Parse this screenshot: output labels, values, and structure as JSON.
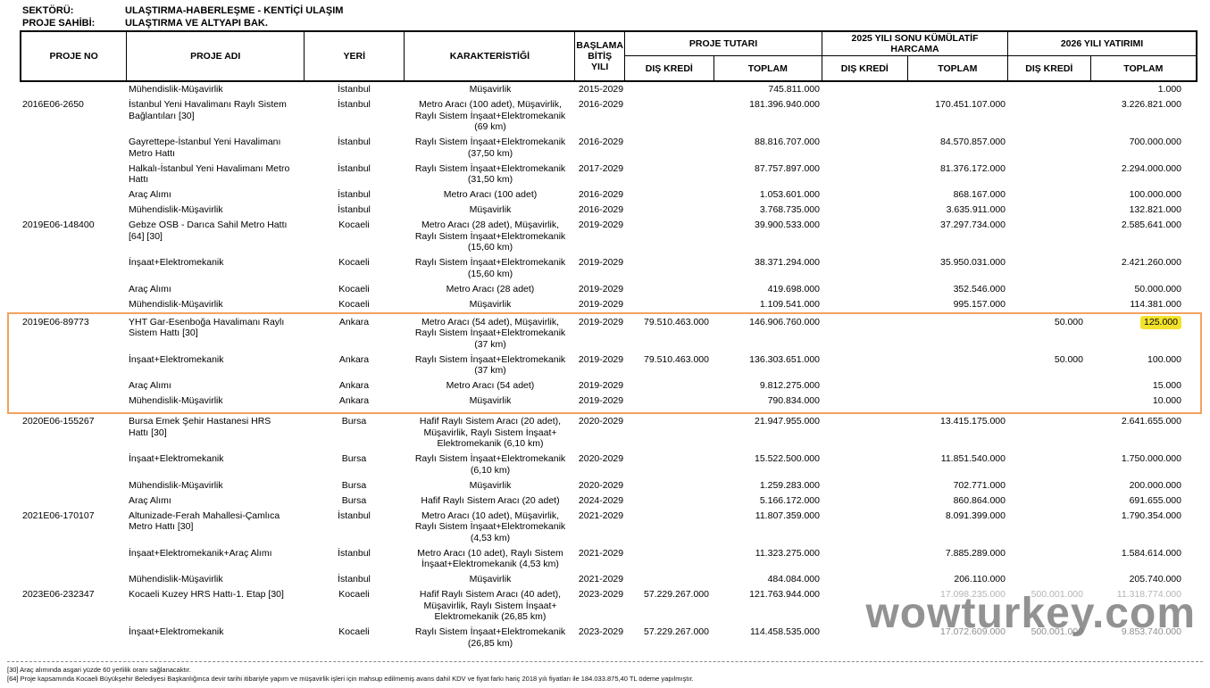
{
  "meta": {
    "sektor_label": "SEKTÖRÜ:",
    "sektor_value": "ULAŞTIRMA-HABERLEŞME - KENTİÇİ ULAŞIM",
    "sahibi_label": "PROJE SAHİBİ:",
    "sahibi_value": "ULAŞTIRMA VE ALTYAPI BAK."
  },
  "table": {
    "headers": {
      "proje_no": "PROJE NO",
      "proje_adi": "PROJE ADI",
      "yeri": "YERİ",
      "karakteristik": "KARAKTERİSTİĞİ",
      "yil": "BAŞLAMA\nBİTİŞ\nYILI",
      "proje_tutari": "PROJE TUTARI",
      "harcama": "2025 YILI SONU KÜMÜLATİF\nHARCAMA",
      "yatirim": "2026 YILI YATIRIMI",
      "dis_kredi_1": "DIŞ KREDİ",
      "toplam_1": "TOPLAM",
      "dis_kredi_2": "DIŞ KREDİ",
      "toplam_2": "TOPLAM",
      "dis_kredi_3": "DIŞ KREDİ",
      "toplam_3": "TOPLAM"
    },
    "rows": [
      {
        "section": "pre",
        "no": "",
        "adi": "Mühendislik-Müşavirlik",
        "yeri": "İstanbul",
        "kar": "Müşavirlik",
        "yil": "2015-2029",
        "pt_dis": "",
        "pt_top": "745.811.000",
        "h_dis": "",
        "h_top": "",
        "y_dis": "",
        "y_top": "1.000"
      },
      {
        "section": "pre",
        "no": "2016E06-2650",
        "adi": "İstanbul Yeni Havalimanı Raylı Sistem\nBağlantıları [30]",
        "yeri": "İstanbul",
        "kar": "Metro Aracı (100 adet), Müşavirlik,\nRaylı Sistem İnşaat+Elektromekanik\n(69 km)",
        "yil": "2016-2029",
        "pt_dis": "",
        "pt_top": "181.396.940.000",
        "h_dis": "",
        "h_top": "170.451.107.000",
        "y_dis": "",
        "y_top": "3.226.821.000"
      },
      {
        "section": "pre",
        "no": "",
        "adi": "Gayrettepe-İstanbul Yeni Havalimanı\nMetro Hattı",
        "yeri": "İstanbul",
        "kar": "Raylı Sistem İnşaat+Elektromekanik\n(37,50 km)",
        "yil": "2016-2029",
        "pt_dis": "",
        "pt_top": "88.816.707.000",
        "h_dis": "",
        "h_top": "84.570.857.000",
        "y_dis": "",
        "y_top": "700.000.000"
      },
      {
        "section": "pre",
        "no": "",
        "adi": "Halkalı-İstanbul Yeni Havalimanı Metro\nHattı",
        "yeri": "İstanbul",
        "kar": "Raylı Sistem İnşaat+Elektromekanik\n(31,50 km)",
        "yil": "2017-2029",
        "pt_dis": "",
        "pt_top": "87.757.897.000",
        "h_dis": "",
        "h_top": "81.376.172.000",
        "y_dis": "",
        "y_top": "2.294.000.000"
      },
      {
        "section": "pre",
        "no": "",
        "adi": "Araç Alımı",
        "yeri": "İstanbul",
        "kar": "Metro Aracı (100 adet)",
        "yil": "2016-2029",
        "pt_dis": "",
        "pt_top": "1.053.601.000",
        "h_dis": "",
        "h_top": "868.167.000",
        "y_dis": "",
        "y_top": "100.000.000"
      },
      {
        "section": "pre",
        "no": "",
        "adi": "Mühendislik-Müşavirlik",
        "yeri": "İstanbul",
        "kar": "Müşavirlik",
        "yil": "2016-2029",
        "pt_dis": "",
        "pt_top": "3.768.735.000",
        "h_dis": "",
        "h_top": "3.635.911.000",
        "y_dis": "",
        "y_top": "132.821.000"
      },
      {
        "section": "pre",
        "no": "2019E06-148400",
        "adi": "Gebze OSB - Darıca Sahil Metro Hattı\n[64] [30]",
        "yeri": "Kocaeli",
        "kar": "Metro Aracı (28 adet), Müşavirlik,\nRaylı Sistem İnşaat+Elektromekanik\n(15,60 km)",
        "yil": "2019-2029",
        "pt_dis": "",
        "pt_top": "39.900.533.000",
        "h_dis": "",
        "h_top": "37.297.734.000",
        "y_dis": "",
        "y_top": "2.585.641.000"
      },
      {
        "section": "pre",
        "no": "",
        "adi": "İnşaat+Elektromekanik",
        "yeri": "Kocaeli",
        "kar": "Raylı Sistem İnşaat+Elektromekanik\n(15,60 km)",
        "yil": "2019-2029",
        "pt_dis": "",
        "pt_top": "38.371.294.000",
        "h_dis": "",
        "h_top": "35.950.031.000",
        "y_dis": "",
        "y_top": "2.421.260.000"
      },
      {
        "section": "pre",
        "no": "",
        "adi": "Araç Alımı",
        "yeri": "Kocaeli",
        "kar": "Metro Aracı (28 adet)",
        "yil": "2019-2029",
        "pt_dis": "",
        "pt_top": "419.698.000",
        "h_dis": "",
        "h_top": "352.546.000",
        "y_dis": "",
        "y_top": "50.000.000"
      },
      {
        "section": "pre",
        "no": "",
        "adi": "Mühendislik-Müşavirlik",
        "yeri": "Kocaeli",
        "kar": "Müşavirlik",
        "yil": "2019-2029",
        "pt_dis": "",
        "pt_top": "1.109.541.000",
        "h_dis": "",
        "h_top": "995.157.000",
        "y_dis": "",
        "y_top": "114.381.000"
      },
      {
        "section": "highlight",
        "no": "2019E06-89773",
        "adi": "YHT Gar-Esenboğa Havalimanı Raylı\nSistem Hattı [30]",
        "yeri": "Ankara",
        "kar": "Metro Aracı (54 adet), Müşavirlik,\nRaylı Sistem İnşaat+Elektromekanik\n(37 km)",
        "yil": "2019-2029",
        "pt_dis": "79.510.463.000",
        "pt_top": "146.906.760.000",
        "h_dis": "",
        "h_top": "",
        "y_dis": "50.000",
        "y_top": "125.000",
        "y_top_marked": true
      },
      {
        "section": "highlight",
        "no": "",
        "adi": "İnşaat+Elektromekanik",
        "yeri": "Ankara",
        "kar": "Raylı Sistem İnşaat+Elektromekanik\n(37 km)",
        "yil": "2019-2029",
        "pt_dis": "79.510.463.000",
        "pt_top": "136.303.651.000",
        "h_dis": "",
        "h_top": "",
        "y_dis": "50.000",
        "y_top": "100.000"
      },
      {
        "section": "highlight",
        "no": "",
        "adi": "Araç Alımı",
        "yeri": "Ankara",
        "kar": "Metro Aracı (54 adet)",
        "yil": "2019-2029",
        "pt_dis": "",
        "pt_top": "9.812.275.000",
        "h_dis": "",
        "h_top": "",
        "y_dis": "",
        "y_top": "15.000"
      },
      {
        "section": "highlight",
        "no": "",
        "adi": "Mühendislik-Müşavirlik",
        "yeri": "Ankara",
        "kar": "Müşavirlik",
        "yil": "2019-2029",
        "pt_dis": "",
        "pt_top": "790.834.000",
        "h_dis": "",
        "h_top": "",
        "y_dis": "",
        "y_top": "10.000"
      },
      {
        "section": "post",
        "no": "2020E06-155267",
        "adi": "Bursa Emek Şehir Hastanesi HRS\nHattı [30]",
        "yeri": "Bursa",
        "kar": "Hafif Raylı Sistem Aracı (20 adet),\nMüşavirlik, Raylı Sistem İnşaat+\nElektromekanik (6,10 km)",
        "yil": "2020-2029",
        "pt_dis": "",
        "pt_top": "21.947.955.000",
        "h_dis": "",
        "h_top": "13.415.175.000",
        "y_dis": "",
        "y_top": "2.641.655.000"
      },
      {
        "section": "post",
        "no": "",
        "adi": "İnşaat+Elektromekanik",
        "yeri": "Bursa",
        "kar": "Raylı Sistem İnşaat+Elektromekanik\n(6,10 km)",
        "yil": "2020-2029",
        "pt_dis": "",
        "pt_top": "15.522.500.000",
        "h_dis": "",
        "h_top": "11.851.540.000",
        "y_dis": "",
        "y_top": "1.750.000.000"
      },
      {
        "section": "post",
        "no": "",
        "adi": "Mühendislik-Müşavirlik",
        "yeri": "Bursa",
        "kar": "Müşavirlik",
        "yil": "2020-2029",
        "pt_dis": "",
        "pt_top": "1.259.283.000",
        "h_dis": "",
        "h_top": "702.771.000",
        "y_dis": "",
        "y_top": "200.000.000"
      },
      {
        "section": "post",
        "no": "",
        "adi": "Araç Alımı",
        "yeri": "Bursa",
        "kar": "Hafif Raylı Sistem Aracı (20 adet)",
        "yil": "2024-2029",
        "pt_dis": "",
        "pt_top": "5.166.172.000",
        "h_dis": "",
        "h_top": "860.864.000",
        "y_dis": "",
        "y_top": "691.655.000"
      },
      {
        "section": "post",
        "no": "2021E06-170107",
        "adi": "Altunizade-Ferah Mahallesi-Çamlıca\nMetro Hattı [30]",
        "yeri": "İstanbul",
        "kar": "Metro Aracı (10 adet), Müşavirlik,\nRaylı Sistem İnşaat+Elektromekanik\n(4,53 km)",
        "yil": "2021-2029",
        "pt_dis": "",
        "pt_top": "11.807.359.000",
        "h_dis": "",
        "h_top": "8.091.399.000",
        "y_dis": "",
        "y_top": "1.790.354.000"
      },
      {
        "section": "post",
        "no": "",
        "adi": "İnşaat+Elektromekanik+Araç Alımı",
        "yeri": "İstanbul",
        "kar": "Metro Aracı (10 adet), Raylı Sistem\nİnşaat+Elektromekanik (4,53 km)",
        "yil": "2021-2029",
        "pt_dis": "",
        "pt_top": "11.323.275.000",
        "h_dis": "",
        "h_top": "7.885.289.000",
        "y_dis": "",
        "y_top": "1.584.614.000"
      },
      {
        "section": "post",
        "no": "",
        "adi": "Mühendislik-Müşavirlik",
        "yeri": "İstanbul",
        "kar": "Müşavirlik",
        "yil": "2021-2029",
        "pt_dis": "",
        "pt_top": "484.084.000",
        "h_dis": "",
        "h_top": "206.110.000",
        "y_dis": "",
        "y_top": "205.740.000"
      },
      {
        "section": "post",
        "no": "2023E06-232347",
        "adi": "Kocaeli Kuzey HRS Hattı-1. Etap [30]",
        "yeri": "Kocaeli",
        "kar": "Hafif Raylı Sistem Aracı (40 adet),\nMüşavirlik, Raylı Sistem İnşaat+\nElektromekanik (26,85 km)",
        "yil": "2023-2029",
        "pt_dis": "57.229.267.000",
        "pt_top": "121.763.944.000",
        "h_dis": "",
        "h_top": "17.098.235.000",
        "y_dis": "500.001.000",
        "y_top": "11.318.774.000",
        "muted_cols": [
          "c-ht",
          "c-yd",
          "c-yt"
        ],
        "muted_color": "#b4b4b4"
      },
      {
        "section": "post",
        "no": "",
        "adi": "İnşaat+Elektromekanik",
        "yeri": "Kocaeli",
        "kar": "Raylı Sistem İnşaat+Elektromekanik\n(26,85 km)",
        "yil": "2023-2029",
        "pt_dis": "57.229.267.000",
        "pt_top": "114.458.535.000",
        "h_dis": "",
        "h_top": "17.072.609.000",
        "y_dis": "500.001.000",
        "y_top": "9.853.740.000",
        "muted_cols": [
          "c-ht",
          "c-yd",
          "c-yt"
        ],
        "muted_color": "#8f8f8f"
      }
    ]
  },
  "highlight": {
    "box_color": "#f2a35e",
    "marker_color": "#f3e22c"
  },
  "watermark": "wowturkey.com",
  "footnotes": [
    "[30] Araç alımında asgari yüzde 60 yerlilik oranı sağlanacaktır.",
    "[64] Proje kapsamında Kocaeli Büyükşehir Belediyesi Başkanlığınca devir tarihi itibariyle yapım ve müşavirlik işleri için mahsup edilmemiş avans dahil KDV ve fiyat farkı hariç 2018 yılı fiyatları ile 184.033.875,40 TL ödeme yapılmıştır."
  ]
}
